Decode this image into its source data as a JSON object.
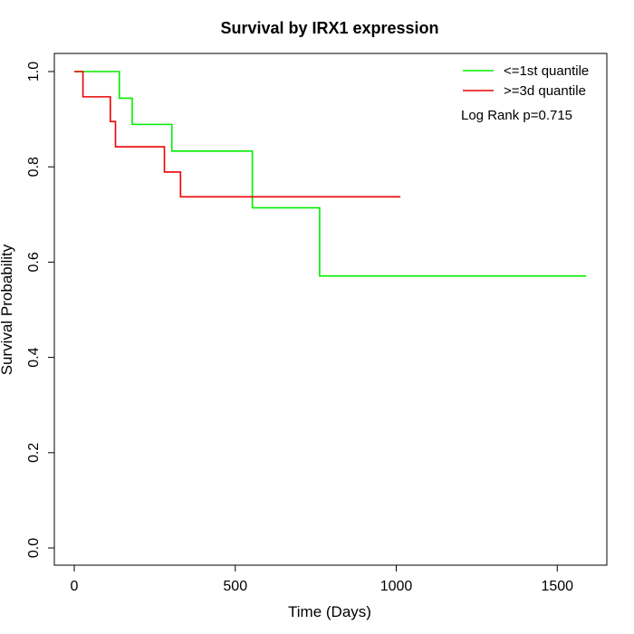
{
  "chart_data": {
    "type": "line",
    "subtype": "kaplan-meier-step",
    "title": "Survival by IRX1 expression",
    "xlabel": "Time (Days)",
    "ylabel": "Survival Probability",
    "xlim": [
      0,
      1600
    ],
    "ylim": [
      0,
      1
    ],
    "xticks": [
      0,
      500,
      1000,
      1500
    ],
    "yticks": [
      0.0,
      0.2,
      0.4,
      0.6,
      0.8,
      1.0
    ],
    "xtick_labels": [
      "0",
      "500",
      "1000",
      "1500"
    ],
    "ytick_labels": [
      "0.0",
      "0.2",
      "0.4",
      "0.6",
      "0.8",
      "1.0"
    ],
    "grid": false,
    "legend_position": "top-right",
    "annotation": "Log Rank p=0.715",
    "series": [
      {
        "name": "<=1st quantile",
        "color": "#00ee00",
        "steps": [
          [
            0,
            1.0
          ],
          [
            140,
            0.944
          ],
          [
            180,
            0.889
          ],
          [
            303,
            0.833
          ],
          [
            553,
            0.714
          ],
          [
            762,
            0.571
          ],
          [
            1590,
            0.571
          ]
        ]
      },
      {
        "name": ">=3d quantile",
        "color": "#ee0000",
        "steps": [
          [
            0,
            1.0
          ],
          [
            27,
            0.947
          ],
          [
            112,
            0.895
          ],
          [
            128,
            0.842
          ],
          [
            280,
            0.789
          ],
          [
            330,
            0.737
          ],
          [
            1013,
            0.737
          ]
        ]
      }
    ]
  }
}
